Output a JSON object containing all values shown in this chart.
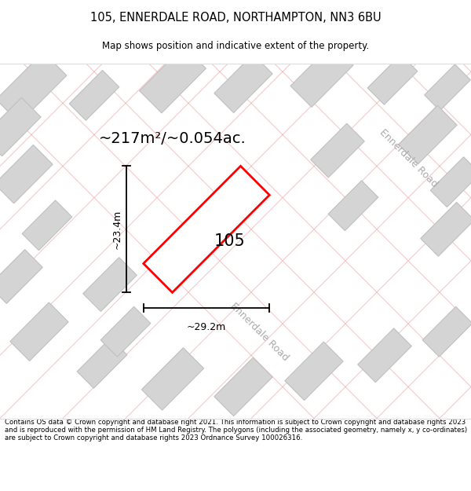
{
  "title_line1": "105, ENNERDALE ROAD, NORTHAMPTON, NN3 6BU",
  "title_line2": "Map shows position and indicative extent of the property.",
  "area_label": "~217m²/~0.054ac.",
  "property_number": "105",
  "dim_width": "~29.2m",
  "dim_height": "~23.4m",
  "road_label_right": "Ennerdale Road",
  "road_label_bottom": "Ennerdale Road",
  "footer_text": "Contains OS data © Crown copyright and database right 2021. This information is subject to Crown copyright and database rights 2023 and is reproduced with the permission of HM Land Registry. The polygons (including the associated geometry, namely x, y co-ordinates) are subject to Crown copyright and database rights 2023 Ordnance Survey 100026316.",
  "map_bg": "#f2f2f2",
  "plot_color_fill": "#ffffff",
  "plot_color_edge": "#ff0000",
  "grid_line_color": "#e8a0a0",
  "building_color": "#d4d4d4",
  "building_edge": "#c0c0c0"
}
